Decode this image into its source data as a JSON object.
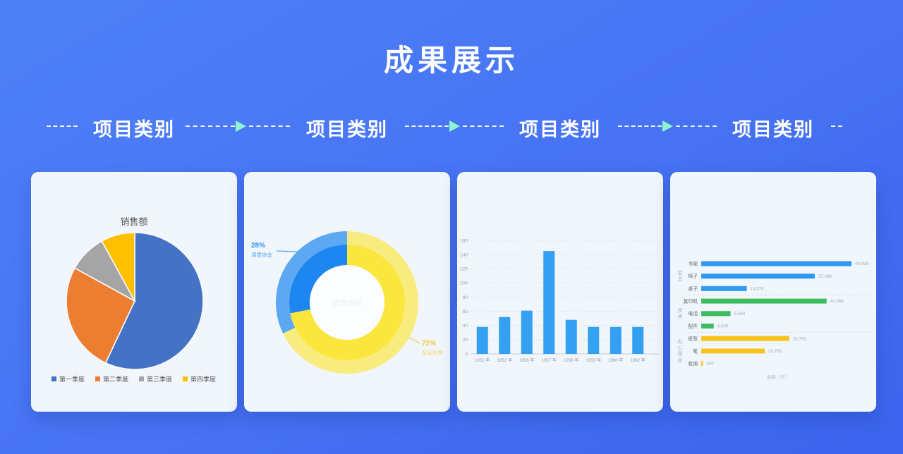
{
  "page": {
    "title": "成果展示"
  },
  "flow": {
    "labels": [
      "项目类别",
      "项目类别",
      "项目类别",
      "项目类别"
    ],
    "arrow_color": "#8DF5CE"
  },
  "chart_data": [
    {
      "type": "pie",
      "title": "销售额",
      "categories": [
        "第一季度",
        "第二季度",
        "第三季度",
        "第四季度"
      ],
      "values": [
        57,
        26,
        9,
        8
      ],
      "colors": [
        "#4472C4",
        "#ED7D31",
        "#A5A5A5",
        "#FFC000"
      ],
      "legend_position": "bottom"
    },
    {
      "type": "donut",
      "center_label": "销售类别",
      "slices": [
        {
          "name": "鉴定机构",
          "pct_label": "72%",
          "value": 72,
          "color": "#FBE63E",
          "outer_color": "#F9EC7E",
          "label_color": "#EFC93C",
          "label_sub_color": "#F3DA6A"
        },
        {
          "name": "满意协会",
          "pct_label": "28%",
          "value": 28,
          "color": "#1D86F0",
          "outer_color": "#5CA8F2",
          "label_color": "#2E96F3",
          "label_sub_color": "#5FA9F0"
        }
      ]
    },
    {
      "type": "bar",
      "categories": [
        "1951 年",
        "1952 年",
        "1956 年",
        "1957 年",
        "1958 年",
        "1959 年",
        "1960 年",
        "1962 年"
      ],
      "values": [
        38,
        52,
        61,
        145,
        48,
        38,
        38,
        38
      ],
      "bar_color": "#33A0F2",
      "ylim": [
        0,
        160
      ],
      "ytick_step": 20,
      "grid": true
    },
    {
      "type": "hbar",
      "xlabel": "金额（元）",
      "xmax": 49099,
      "groups": [
        {
          "name": "家具",
          "color": "#2F99F3",
          "items": [
            {
              "label": "书架",
              "value": 49099
            },
            {
              "label": "椅子",
              "value": 37098
            },
            {
              "label": "桌子",
              "value": 14870
            }
          ]
        },
        {
          "name": "技术",
          "color": "#3CBE5E",
          "items": [
            {
              "label": "复印机",
              "value": 40968
            },
            {
              "label": "电话",
              "value": 9580
            },
            {
              "label": "配件",
              "value": 4090
            }
          ]
        },
        {
          "name": "办公用品",
          "color": "#F8C31A",
          "items": [
            {
              "label": "纸张",
              "value": 28750
            },
            {
              "label": "笔",
              "value": 20760
            },
            {
              "label": "收纳",
              "value": 540
            }
          ]
        }
      ]
    }
  ]
}
